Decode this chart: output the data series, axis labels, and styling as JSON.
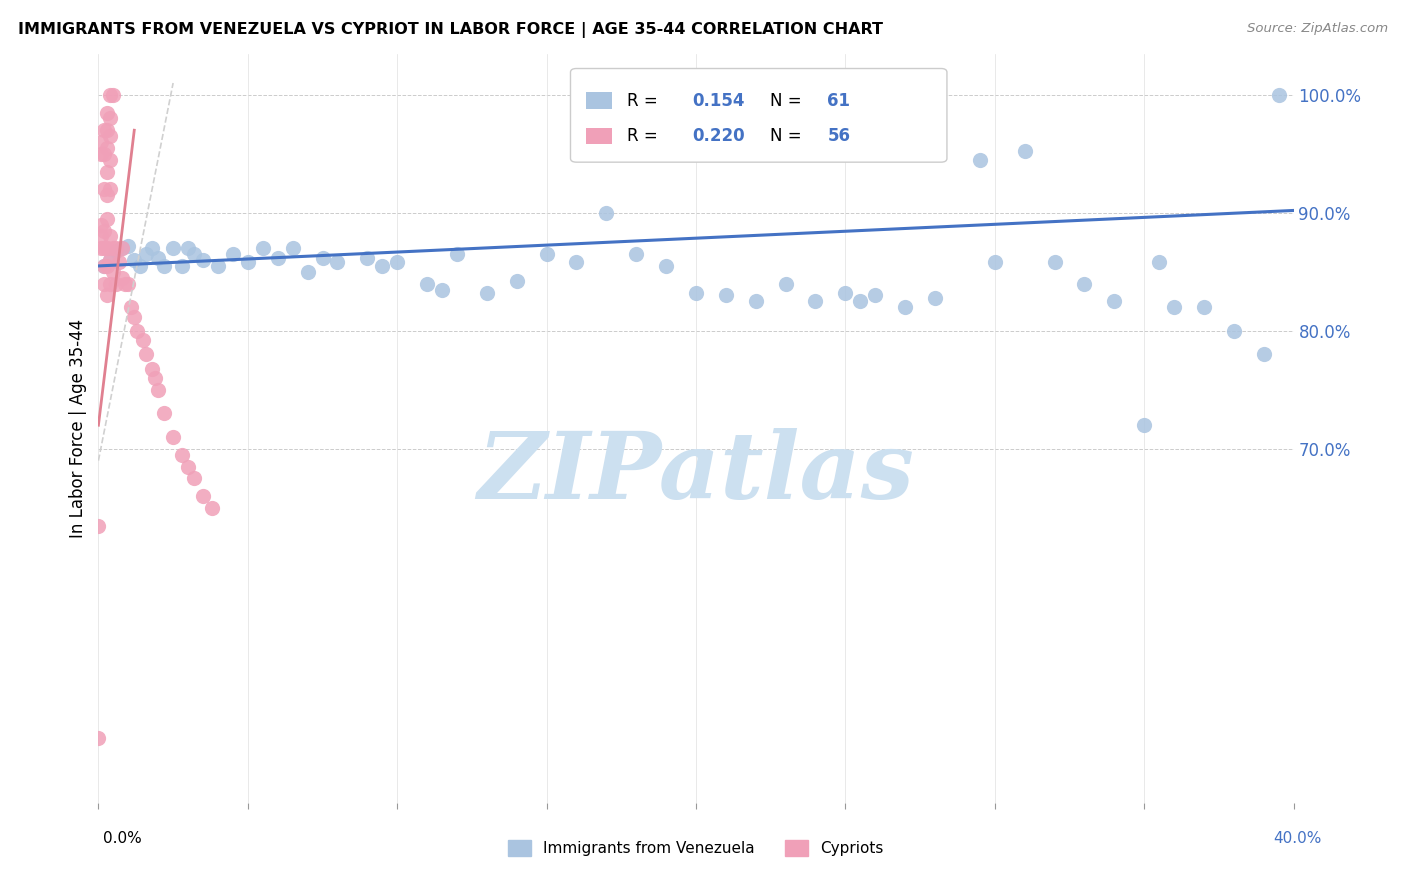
{
  "title": "IMMIGRANTS FROM VENEZUELA VS CYPRIOT IN LABOR FORCE | AGE 35-44 CORRELATION CHART",
  "source": "Source: ZipAtlas.com",
  "ylabel": "In Labor Force | Age 35-44",
  "yticks": [
    0.7,
    0.8,
    0.9,
    1.0
  ],
  "ytick_labels": [
    "70.0%",
    "80.0%",
    "90.0%",
    "100.0%"
  ],
  "xmin": 0.0,
  "xmax": 0.4,
  "ymin": 0.4,
  "ymax": 1.035,
  "color_blue": "#aac4e0",
  "color_pink": "#f0a0b8",
  "trendline_blue_color": "#4472c4",
  "trendline_pink_color": "#e08090",
  "trendline_pink_dash_color": "#d0d0d0",
  "watermark": "ZIPatlas",
  "watermark_color": "#cce0f0",
  "blue_scatter_x": [
    0.002,
    0.004,
    0.006,
    0.008,
    0.01,
    0.012,
    0.014,
    0.016,
    0.018,
    0.02,
    0.022,
    0.025,
    0.028,
    0.03,
    0.032,
    0.035,
    0.04,
    0.045,
    0.05,
    0.055,
    0.06,
    0.065,
    0.07,
    0.075,
    0.08,
    0.09,
    0.095,
    0.1,
    0.11,
    0.115,
    0.12,
    0.13,
    0.14,
    0.15,
    0.16,
    0.17,
    0.18,
    0.19,
    0.2,
    0.21,
    0.22,
    0.23,
    0.24,
    0.25,
    0.255,
    0.26,
    0.27,
    0.28,
    0.295,
    0.3,
    0.31,
    0.32,
    0.33,
    0.34,
    0.35,
    0.355,
    0.36,
    0.37,
    0.38,
    0.39,
    0.395
  ],
  "blue_scatter_y": [
    0.855,
    0.86,
    0.868,
    0.87,
    0.872,
    0.86,
    0.855,
    0.865,
    0.87,
    0.862,
    0.855,
    0.87,
    0.855,
    0.87,
    0.865,
    0.86,
    0.855,
    0.865,
    0.858,
    0.87,
    0.862,
    0.87,
    0.85,
    0.862,
    0.858,
    0.862,
    0.855,
    0.858,
    0.84,
    0.835,
    0.865,
    0.832,
    0.842,
    0.865,
    0.858,
    0.9,
    0.865,
    0.855,
    0.832,
    0.83,
    0.825,
    0.84,
    0.825,
    0.832,
    0.825,
    0.83,
    0.82,
    0.828,
    0.945,
    0.858,
    0.952,
    0.858,
    0.84,
    0.825,
    0.72,
    0.858,
    0.82,
    0.82,
    0.8,
    0.78,
    1.0
  ],
  "pink_scatter_x": [
    0.0,
    0.001,
    0.001,
    0.001,
    0.001,
    0.001,
    0.002,
    0.002,
    0.002,
    0.002,
    0.002,
    0.002,
    0.002,
    0.003,
    0.003,
    0.003,
    0.003,
    0.003,
    0.003,
    0.003,
    0.003,
    0.003,
    0.004,
    0.004,
    0.004,
    0.004,
    0.004,
    0.004,
    0.004,
    0.004,
    0.005,
    0.005,
    0.005,
    0.006,
    0.006,
    0.007,
    0.008,
    0.008,
    0.009,
    0.01,
    0.011,
    0.012,
    0.013,
    0.015,
    0.016,
    0.018,
    0.019,
    0.02,
    0.022,
    0.025,
    0.028,
    0.03,
    0.032,
    0.035,
    0.038,
    0.0
  ],
  "pink_scatter_y": [
    0.635,
    0.87,
    0.88,
    0.89,
    0.95,
    0.96,
    0.84,
    0.855,
    0.87,
    0.885,
    0.92,
    0.95,
    0.97,
    0.83,
    0.855,
    0.87,
    0.895,
    0.915,
    0.935,
    0.955,
    0.97,
    0.985,
    0.84,
    0.86,
    0.88,
    0.92,
    0.945,
    0.965,
    0.98,
    1.0,
    0.85,
    0.87,
    1.0,
    0.84,
    0.87,
    0.858,
    0.845,
    0.87,
    0.84,
    0.84,
    0.82,
    0.812,
    0.8,
    0.792,
    0.78,
    0.768,
    0.76,
    0.75,
    0.73,
    0.71,
    0.695,
    0.685,
    0.675,
    0.66,
    0.65,
    0.455
  ]
}
